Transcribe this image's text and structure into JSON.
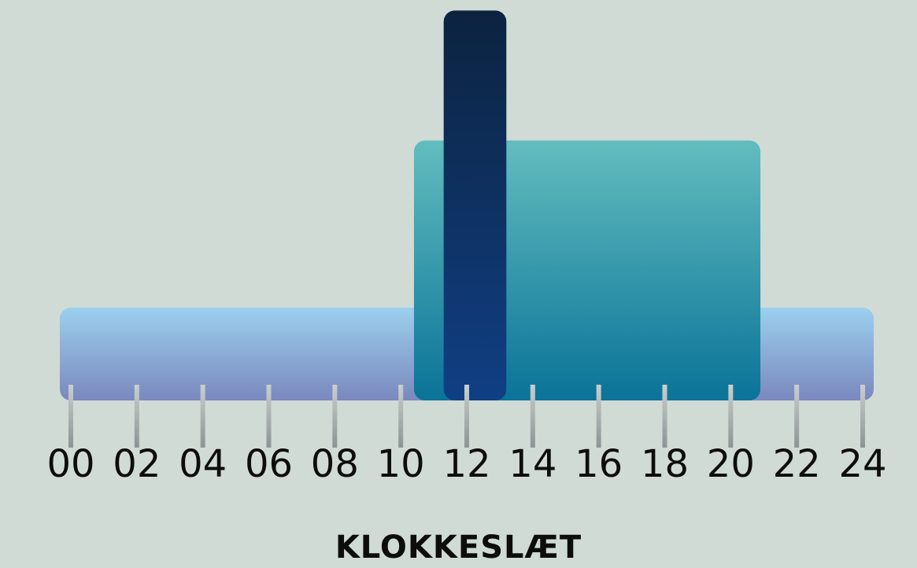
{
  "chart_data": {
    "type": "bar",
    "xlabel": "KLOKKESLÆT",
    "xlim": [
      0,
      24
    ],
    "x_ticks": [
      "00",
      "02",
      "04",
      "06",
      "08",
      "10",
      "12",
      "14",
      "16",
      "18",
      "20",
      "22",
      "24"
    ],
    "bands": [
      {
        "start": 0,
        "end": 24,
        "level": 1.0,
        "colors": [
          "#9cd0ee",
          "#7a88be"
        ]
      },
      {
        "start": 10.4,
        "end": 20.9,
        "level": 2.8,
        "colors": [
          "#62bdbe",
          "#0a7398"
        ]
      },
      {
        "start": 11.3,
        "end": 13.2,
        "level": 4.2,
        "colors": [
          "#0c2340",
          "#103f84"
        ]
      }
    ],
    "grid": false,
    "legend": "none"
  }
}
